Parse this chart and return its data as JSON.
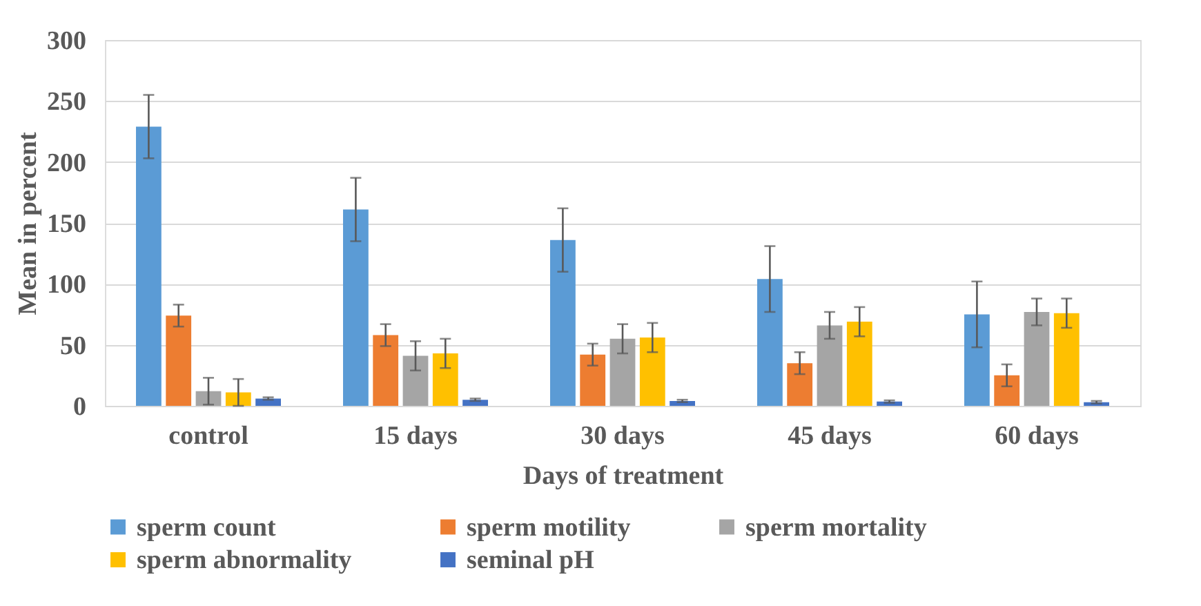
{
  "chart_data": {
    "type": "bar",
    "xlabel": "Days of treatment",
    "ylabel": "Mean in percent",
    "categories": [
      "control",
      "15 days",
      "30 days",
      "45 days",
      "60 days"
    ],
    "series": [
      {
        "name": "sperm count",
        "color": "#5b9bd5",
        "values": [
          229,
          161,
          136,
          104,
          75
        ],
        "errors": [
          26,
          26,
          26,
          27,
          27
        ]
      },
      {
        "name": "sperm motility",
        "color": "#ed7d31",
        "values": [
          74,
          58,
          42,
          35,
          25
        ],
        "errors": [
          9,
          9,
          9,
          9,
          9
        ]
      },
      {
        "name": "sperm mortality",
        "color": "#a5a5a5",
        "values": [
          12,
          41,
          55,
          66,
          77
        ],
        "errors": [
          11,
          12,
          12,
          11,
          11
        ]
      },
      {
        "name": "sperm abnormality",
        "color": "#ffc000",
        "values": [
          11,
          43,
          56,
          69,
          76
        ],
        "errors": [
          11,
          12,
          12,
          12,
          12
        ]
      },
      {
        "name": "seminal pH",
        "color": "#4472c4",
        "values": [
          6,
          5,
          4,
          3.5,
          3
        ],
        "errors": [
          1,
          1,
          1,
          1,
          1
        ]
      }
    ],
    "ylim": [
      0,
      300
    ],
    "yticks": [
      0,
      50,
      100,
      150,
      200,
      250,
      300
    ],
    "grid": "y",
    "legend": "bottom"
  }
}
